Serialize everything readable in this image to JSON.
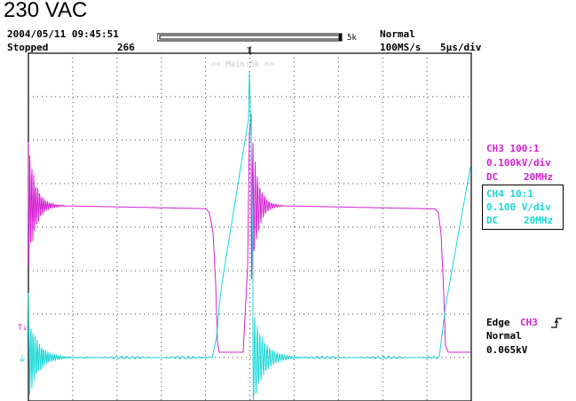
{
  "title": "230 VAC",
  "header": {
    "datetime": "2004/05/11 09:45:51",
    "status": "Stopped",
    "count": "266",
    "mem_length": "5k",
    "trigger_mode": "Normal",
    "sample_rate": "100MS/s",
    "timebase": "5µs/div"
  },
  "display": {
    "main_label": "<< Main:5k >>",
    "trigger_marker": "T",
    "ch3_ref_marker": "T↓",
    "ch4_ref_marker": "⏚"
  },
  "channels": {
    "ch3": {
      "name": "CH3 100:1",
      "scale": "0.100kV/div",
      "coupling": "DC",
      "bandwidth": "20MHz",
      "color": "#d321d3"
    },
    "ch4": {
      "name": "CH4 10:1",
      "scale": "0.100 V/div",
      "coupling": "DC",
      "bandwidth": "20MHz",
      "color": "#18d6d6"
    }
  },
  "trigger": {
    "type": "Edge",
    "source": "CH3",
    "mode": "Normal",
    "level": "0.065kV"
  }
}
